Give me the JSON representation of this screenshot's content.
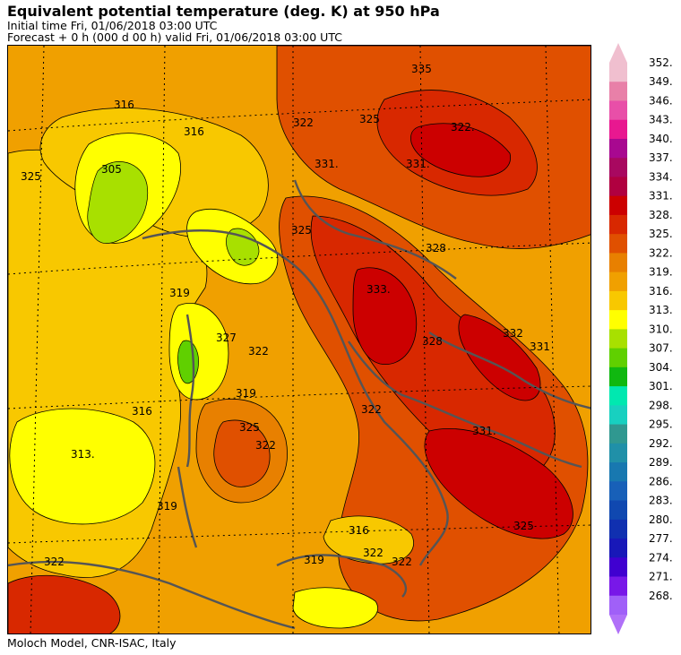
{
  "header": {
    "title": "Equivalent potential temperature (deg. K) at 950 hPa",
    "init_line": "Initial time  Fri, 01/06/2018  03:00 UTC",
    "forecast_line": "Forecast  +   0 h  (000 d 00 h)  valid Fri, 01/06/2018 03:00 UTC"
  },
  "footer": {
    "credit": "Moloch Model, CNR-ISAC, Italy"
  },
  "colorbar": {
    "levels": [
      {
        "value": "352.",
        "color": "#f0bfcf"
      },
      {
        "value": "349.",
        "color": "#e880a8"
      },
      {
        "value": "346.",
        "color": "#e84fa8"
      },
      {
        "value": "343.",
        "color": "#e81890"
      },
      {
        "value": "340.",
        "color": "#a80890"
      },
      {
        "value": "337.",
        "color": "#a80860"
      },
      {
        "value": "334.",
        "color": "#b00040"
      },
      {
        "value": "331.",
        "color": "#cc0000"
      },
      {
        "value": "328.",
        "color": "#d82800"
      },
      {
        "value": "325.",
        "color": "#e05000"
      },
      {
        "value": "322.",
        "color": "#e88000"
      },
      {
        "value": "319.",
        "color": "#f0a000"
      },
      {
        "value": "316.",
        "color": "#f8c800"
      },
      {
        "value": "313.",
        "color": "#ffff00"
      },
      {
        "value": "310.",
        "color": "#a8e000"
      },
      {
        "value": "307.",
        "color": "#60d000"
      },
      {
        "value": "304.",
        "color": "#10b810"
      },
      {
        "value": "301.",
        "color": "#00e8b0"
      },
      {
        "value": "298.",
        "color": "#18d0c0"
      },
      {
        "value": "295.",
        "color": "#309890"
      },
      {
        "value": "292.",
        "color": "#2090a8"
      },
      {
        "value": "289.",
        "color": "#1878b0"
      },
      {
        "value": "286.",
        "color": "#1860b8"
      },
      {
        "value": "283.",
        "color": "#1048b0"
      },
      {
        "value": "280.",
        "color": "#1030b0"
      },
      {
        "value": "277.",
        "color": "#1818b8"
      },
      {
        "value": "274.",
        "color": "#4000d0"
      },
      {
        "value": "271.",
        "color": "#7818e8"
      },
      {
        "value": "268.",
        "color": "#a060f8"
      }
    ],
    "arrow_top_color": "#f0bfcf",
    "arrow_bottom_color": "#b070f8"
  },
  "map_labels": [
    "316",
    "322",
    "325",
    "322.",
    "335",
    "331.",
    "331.",
    "305",
    "316",
    "325",
    "328",
    "333.",
    "319",
    "327",
    "322",
    "319",
    "332",
    "331",
    "328",
    "322",
    "331.",
    "325",
    "322",
    "316",
    "313.",
    "319",
    "325",
    "319",
    "322",
    "316",
    "322",
    "322",
    "325"
  ]
}
